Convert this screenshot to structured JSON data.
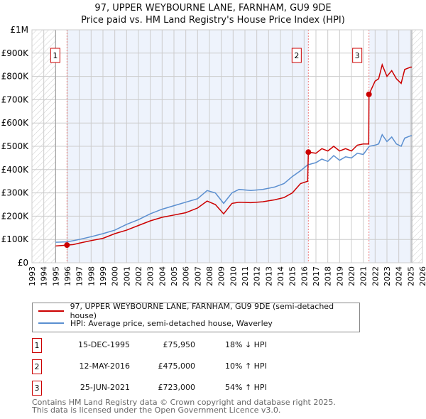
{
  "title_line1": "97, UPPER WEYBOURNE LANE, FARNHAM, GU9 9DE",
  "title_line2": "Price paid vs. HM Land Registry's House Price Index (HPI)",
  "chart_data": {
    "type": "line",
    "xlim": [
      1993,
      2026
    ],
    "ylim": [
      0,
      1000000
    ],
    "x_ticks": [
      "1993",
      "1994",
      "1995",
      "1996",
      "1997",
      "1998",
      "1999",
      "2000",
      "2001",
      "2002",
      "2003",
      "2004",
      "2005",
      "2006",
      "2007",
      "2008",
      "2009",
      "2010",
      "2011",
      "2012",
      "2013",
      "2014",
      "2015",
      "2016",
      "2017",
      "2018",
      "2019",
      "2020",
      "2021",
      "2022",
      "2023",
      "2024",
      "2025",
      "2026"
    ],
    "y_ticks": [
      {
        "v": 0,
        "l": "£0"
      },
      {
        "v": 100000,
        "l": "£100K"
      },
      {
        "v": 200000,
        "l": "£200K"
      },
      {
        "v": 300000,
        "l": "£300K"
      },
      {
        "v": 400000,
        "l": "£400K"
      },
      {
        "v": 500000,
        "l": "£500K"
      },
      {
        "v": 600000,
        "l": "£600K"
      },
      {
        "v": 700000,
        "l": "£700K"
      },
      {
        "v": 800000,
        "l": "£800K"
      },
      {
        "v": 900000,
        "l": "£900K"
      },
      {
        "v": 1000000,
        "l": "£1M"
      }
    ],
    "data_range": [
      1995,
      2025.1
    ],
    "series": [
      {
        "name": "97, UPPER WEYBOURNE LANE, FARNHAM, GU9 9DE (semi-detached house)",
        "color": "#cc0000",
        "x": [
          1995,
          1995.95,
          1996.5,
          1997,
          1998,
          1999,
          2000,
          2001,
          2002,
          2003,
          2004,
          2005,
          2006,
          2007,
          2007.8,
          2008.5,
          2009.2,
          2009.9,
          2010.5,
          2011.5,
          2012.5,
          2013.5,
          2014.3,
          2015,
          2015.7,
          2016.3,
          2016.36,
          2017,
          2017.5,
          2018,
          2018.5,
          2019,
          2019.5,
          2020,
          2020.5,
          2021,
          2021.46,
          2021.48,
          2022,
          2022.3,
          2022.6,
          2023,
          2023.4,
          2023.8,
          2024.2,
          2024.5,
          2025,
          2025.1
        ],
        "y": [
          72000,
          75950,
          78000,
          84000,
          95000,
          105000,
          125000,
          140000,
          160000,
          180000,
          195000,
          205000,
          215000,
          235000,
          265000,
          250000,
          210000,
          255000,
          260000,
          258000,
          262000,
          270000,
          280000,
          300000,
          340000,
          350000,
          475000,
          470000,
          490000,
          480000,
          500000,
          480000,
          490000,
          480000,
          505000,
          510000,
          510000,
          723000,
          780000,
          790000,
          850000,
          800000,
          825000,
          790000,
          770000,
          830000,
          840000,
          840000
        ]
      },
      {
        "name": "HPI: Average price, semi-detached house, Waverley",
        "color": "#5b8fd0",
        "x": [
          1995,
          1996,
          1997,
          1998,
          1999,
          2000,
          2001,
          2002,
          2003,
          2004,
          2005,
          2006,
          2007,
          2007.8,
          2008.5,
          2009.2,
          2009.9,
          2010.5,
          2011.5,
          2012.5,
          2013.5,
          2014.3,
          2015,
          2015.7,
          2016.3,
          2017,
          2017.5,
          2018,
          2018.5,
          2019,
          2019.5,
          2020,
          2020.5,
          2021,
          2021.5,
          2022,
          2022.3,
          2022.6,
          2023,
          2023.4,
          2023.8,
          2024.2,
          2024.5,
          2025,
          2025.1
        ],
        "y": [
          88000,
          90000,
          100000,
          112000,
          125000,
          140000,
          165000,
          185000,
          210000,
          230000,
          245000,
          260000,
          275000,
          310000,
          300000,
          255000,
          300000,
          315000,
          310000,
          315000,
          325000,
          340000,
          370000,
          395000,
          420000,
          430000,
          445000,
          435000,
          460000,
          440000,
          455000,
          450000,
          470000,
          465000,
          500000,
          505000,
          510000,
          550000,
          520000,
          540000,
          510000,
          500000,
          535000,
          545000,
          545000
        ]
      }
    ],
    "sales": [
      {
        "label": "1",
        "x": 1995.96,
        "y": 75950,
        "date": "15-DEC-1995",
        "price": "£75,950",
        "hpi": "18% ↓ HPI"
      },
      {
        "label": "2",
        "x": 2016.36,
        "y": 475000,
        "date": "12-MAY-2016",
        "price": "£475,000",
        "hpi": "10% ↑ HPI"
      },
      {
        "label": "3",
        "x": 2021.48,
        "y": 723000,
        "date": "25-JUN-2021",
        "price": "£723,000",
        "hpi": "54% ↑ HPI"
      }
    ]
  },
  "legend": {
    "property": "97, UPPER WEYBOURNE LANE, FARNHAM, GU9 9DE (semi-detached house)",
    "hpi": "HPI: Average price, semi-detached house, Waverley"
  },
  "footer": {
    "line1": "Contains HM Land Registry data © Crown copyright and database right 2025.",
    "line2": "This data is licensed under the Open Government Licence v3.0."
  }
}
